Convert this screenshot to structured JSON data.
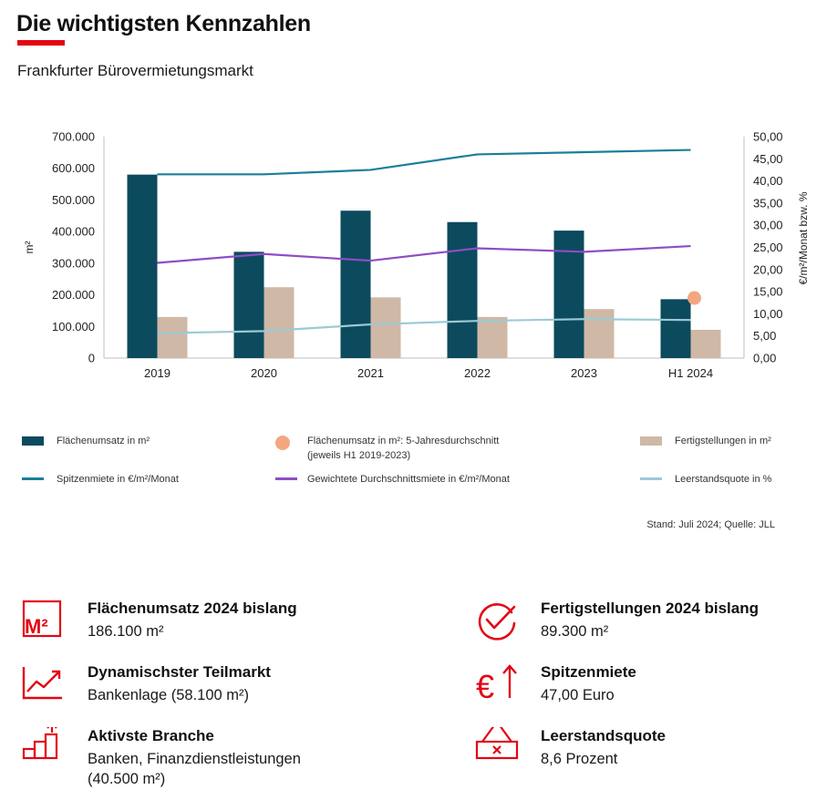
{
  "header": {
    "title": "Die wichtigsten Kennzahlen",
    "subtitle": "Frankfurter Bürovermietungsmarkt"
  },
  "colors": {
    "accent": "#e30613",
    "umsatz_bar": "#0c4a5e",
    "fertig_bar": "#cfb8a6",
    "spitzen_line": "#1a7f99",
    "durchschnitt_line": "#8e4dc5",
    "leerstand_line": "#9ccad6",
    "avg_marker": "#f4a67f"
  },
  "chart_data": {
    "type": "bar",
    "categories": [
      "2019",
      "2020",
      "2021",
      "2022",
      "2023",
      "H1 2024"
    ],
    "ylabel": "m²",
    "y2label": "€/m²/Monat bzw. %",
    "ylim": [
      0,
      700000
    ],
    "y2lim": [
      0,
      50
    ],
    "y_ticks": [
      "700.000",
      "600.000",
      "500.000",
      "400.000",
      "300.000",
      "200.000",
      "100.000",
      "0"
    ],
    "y2_ticks": [
      "50,00",
      "45,00",
      "40,00",
      "35,00",
      "30,00",
      "25,00",
      "20,00",
      "15,00",
      "10,00",
      "5,00",
      "0,00"
    ],
    "grid": false,
    "series": [
      {
        "name": "Flächenumsatz in m²",
        "kind": "bar",
        "axis": "left",
        "values": [
          580000,
          336000,
          466000,
          430000,
          403000,
          186100
        ]
      },
      {
        "name": "Fertigstellungen in m²",
        "kind": "bar",
        "axis": "left",
        "values": [
          130000,
          224000,
          192000,
          130000,
          155000,
          89300
        ]
      },
      {
        "name": "Spitzenmiete in €/m²/Monat",
        "kind": "line",
        "axis": "right",
        "values": [
          41.5,
          41.5,
          42.5,
          46.0,
          46.5,
          47.0
        ]
      },
      {
        "name": "Gewichtete Durchschnittsmiete in €/m²/Monat",
        "kind": "line",
        "axis": "right",
        "values": [
          21.5,
          23.5,
          22.0,
          24.8,
          24.0,
          25.3
        ]
      },
      {
        "name": "Leerstandsquote in %",
        "kind": "line",
        "axis": "right",
        "values": [
          5.6,
          6.1,
          7.6,
          8.4,
          8.8,
          8.6
        ]
      }
    ],
    "average_marker": {
      "name_line1": "Flächenumsatz in m²: 5-Jahresdurchschnitt",
      "name_line2": "(jeweils H1 2019-2023)",
      "category": "H1 2024",
      "value": 190000
    }
  },
  "source": "Stand: Juli 2024; Quelle: JLL",
  "kpis": [
    {
      "icon": "m2-icon",
      "title": "Flächenumsatz 2024 bislang",
      "value": "186.100 m²"
    },
    {
      "icon": "checkmark-icon",
      "title": "Fertigstellungen 2024 bislang",
      "value": "89.300 m²"
    },
    {
      "icon": "trend-up-icon",
      "title": "Dynamischster Teilmarkt",
      "value": "Bankenlage (58.100 m²)"
    },
    {
      "icon": "euro-up-icon",
      "title": "Spitzenmiete",
      "value": "47,00 Euro"
    },
    {
      "icon": "bar-steps-icon",
      "title": "Aktivste Branche",
      "value": "Banken, Finanzdienstleistungen",
      "value2": "(40.500 m²)"
    },
    {
      "icon": "vacancy-sign-icon",
      "title": "Leerstandsquote",
      "value": "8,6 Prozent"
    }
  ]
}
